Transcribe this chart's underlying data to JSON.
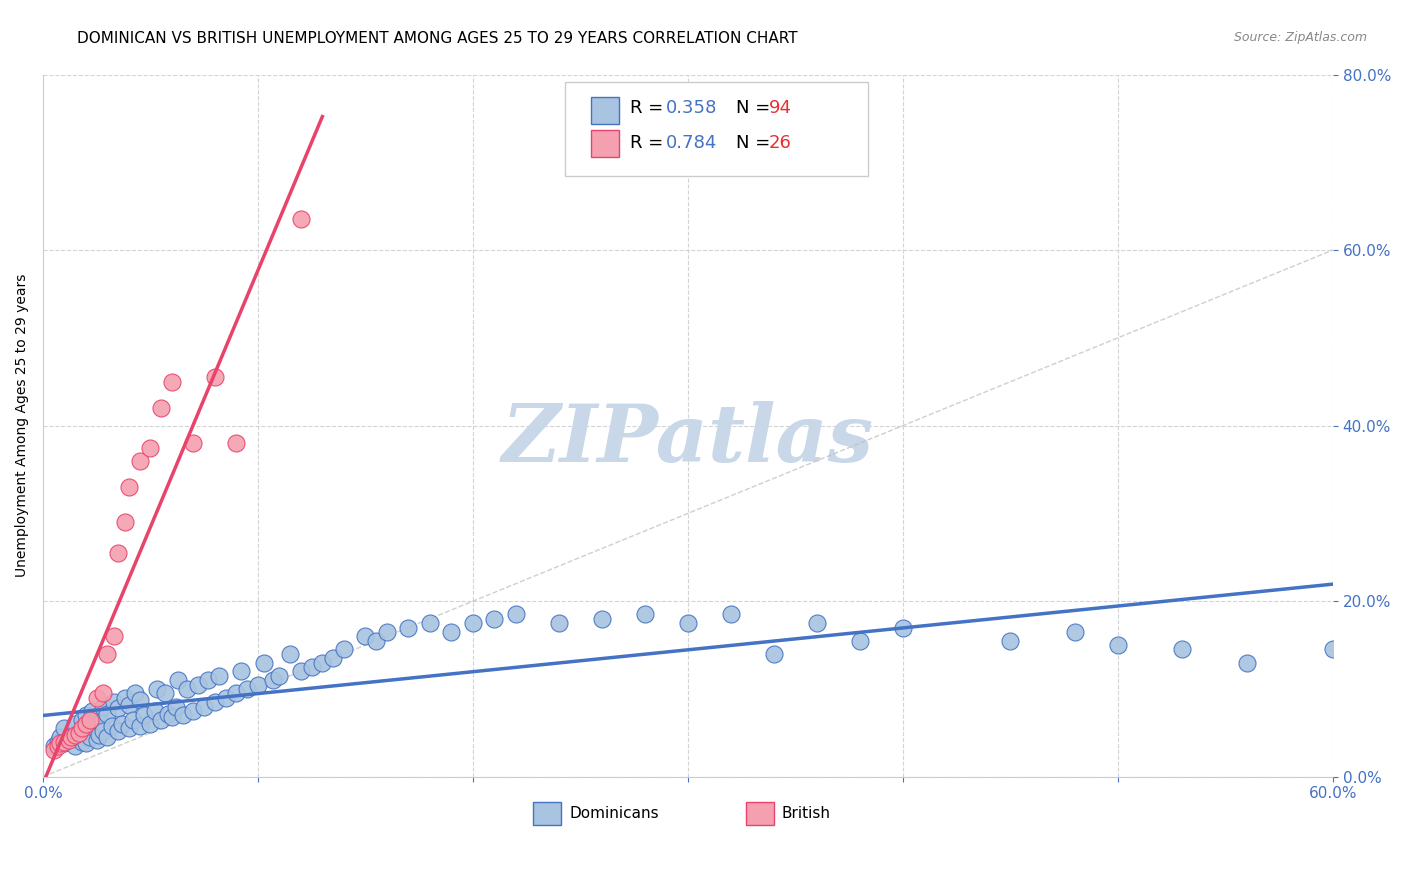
{
  "title": "DOMINICAN VS BRITISH UNEMPLOYMENT AMONG AGES 25 TO 29 YEARS CORRELATION CHART",
  "source": "Source: ZipAtlas.com",
  "ylabel": "Unemployment Among Ages 25 to 29 years",
  "xlim": [
    0.0,
    0.6
  ],
  "ylim": [
    0.0,
    0.8
  ],
  "xticks": [
    0.0,
    0.6
  ],
  "yticks": [
    0.0,
    0.2,
    0.4,
    0.6,
    0.8
  ],
  "xminor_ticks": [
    0.1,
    0.2,
    0.3,
    0.4,
    0.5
  ],
  "right_yticks": [
    0.0,
    0.2,
    0.4,
    0.6,
    0.8
  ],
  "dominican_color": "#a8c4e0",
  "british_color": "#f4a0b0",
  "dominican_line_color": "#4472c4",
  "british_line_color": "#e8436a",
  "dominican_R": 0.358,
  "dominican_N": 94,
  "british_R": 0.784,
  "british_N": 26,
  "legend_R_color": "#4472c4",
  "legend_N_color": "#e83030",
  "watermark": "ZIPatlas",
  "watermark_color": "#c8d8e8",
  "dominican_x": [
    0.005,
    0.007,
    0.008,
    0.01,
    0.01,
    0.012,
    0.013,
    0.015,
    0.015,
    0.017,
    0.018,
    0.018,
    0.02,
    0.02,
    0.02,
    0.022,
    0.022,
    0.023,
    0.025,
    0.025,
    0.026,
    0.027,
    0.028,
    0.028,
    0.03,
    0.03,
    0.032,
    0.033,
    0.035,
    0.035,
    0.037,
    0.038,
    0.04,
    0.04,
    0.042,
    0.043,
    0.045,
    0.045,
    0.047,
    0.05,
    0.052,
    0.053,
    0.055,
    0.057,
    0.058,
    0.06,
    0.062,
    0.063,
    0.065,
    0.067,
    0.07,
    0.072,
    0.075,
    0.077,
    0.08,
    0.082,
    0.085,
    0.09,
    0.092,
    0.095,
    0.1,
    0.103,
    0.107,
    0.11,
    0.115,
    0.12,
    0.125,
    0.13,
    0.135,
    0.14,
    0.15,
    0.155,
    0.16,
    0.17,
    0.18,
    0.19,
    0.2,
    0.21,
    0.22,
    0.24,
    0.26,
    0.28,
    0.3,
    0.32,
    0.34,
    0.36,
    0.38,
    0.4,
    0.45,
    0.48,
    0.5,
    0.53,
    0.56,
    0.6
  ],
  "dominican_y": [
    0.035,
    0.04,
    0.045,
    0.038,
    0.055,
    0.042,
    0.048,
    0.035,
    0.06,
    0.045,
    0.04,
    0.065,
    0.038,
    0.052,
    0.07,
    0.045,
    0.058,
    0.075,
    0.042,
    0.068,
    0.048,
    0.062,
    0.052,
    0.08,
    0.045,
    0.072,
    0.058,
    0.085,
    0.052,
    0.078,
    0.06,
    0.09,
    0.055,
    0.082,
    0.065,
    0.095,
    0.058,
    0.088,
    0.07,
    0.06,
    0.075,
    0.1,
    0.065,
    0.095,
    0.072,
    0.068,
    0.08,
    0.11,
    0.07,
    0.1,
    0.075,
    0.105,
    0.08,
    0.11,
    0.085,
    0.115,
    0.09,
    0.095,
    0.12,
    0.1,
    0.105,
    0.13,
    0.11,
    0.115,
    0.14,
    0.12,
    0.125,
    0.13,
    0.135,
    0.145,
    0.16,
    0.155,
    0.165,
    0.17,
    0.175,
    0.165,
    0.175,
    0.18,
    0.185,
    0.175,
    0.18,
    0.185,
    0.175,
    0.185,
    0.14,
    0.175,
    0.155,
    0.17,
    0.155,
    0.165,
    0.15,
    0.145,
    0.13,
    0.145
  ],
  "british_x": [
    0.005,
    0.007,
    0.008,
    0.01,
    0.012,
    0.013,
    0.015,
    0.017,
    0.018,
    0.02,
    0.022,
    0.025,
    0.028,
    0.03,
    0.033,
    0.035,
    0.038,
    0.04,
    0.045,
    0.05,
    0.055,
    0.06,
    0.07,
    0.08,
    0.09,
    0.12
  ],
  "british_y": [
    0.03,
    0.035,
    0.038,
    0.04,
    0.042,
    0.045,
    0.048,
    0.05,
    0.055,
    0.06,
    0.065,
    0.09,
    0.095,
    0.14,
    0.16,
    0.255,
    0.29,
    0.33,
    0.36,
    0.375,
    0.42,
    0.45,
    0.38,
    0.455,
    0.38,
    0.635
  ],
  "background_color": "#ffffff",
  "grid_color": "#d0d0d0",
  "title_fontsize": 11,
  "axis_fontsize": 10,
  "tick_fontsize": 11,
  "source_fontsize": 9
}
